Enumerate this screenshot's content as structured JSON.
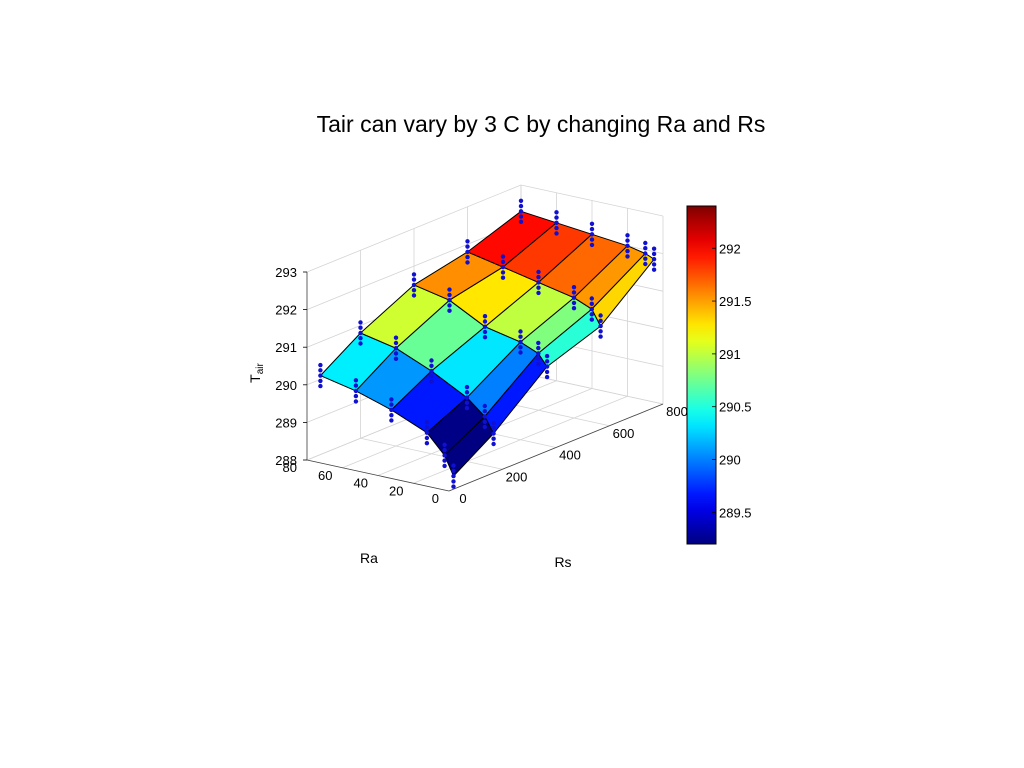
{
  "chart_data": {
    "type": "surface",
    "title": "Tair can vary by 3 C by changing Ra and Rs",
    "xlabel": "Rs",
    "ylabel": "Ra",
    "zlabel_main": "T",
    "zlabel_sub": "air",
    "xlim": [
      0,
      800
    ],
    "ylim": [
      0,
      80
    ],
    "zlim": [
      288,
      293
    ],
    "x_ticks": [
      "0",
      "200",
      "400",
      "600",
      "800"
    ],
    "y_ticks": [
      "0",
      "20",
      "40",
      "60",
      "80"
    ],
    "z_ticks": [
      "288",
      "289",
      "290",
      "291",
      "292",
      "293"
    ],
    "rs_grid": [
      50,
      200,
      400,
      600,
      800
    ],
    "ra_grid": [
      5,
      10,
      20,
      40,
      60,
      80
    ],
    "tair": [
      [
        288.2,
        288.9,
        290.1,
        290.6,
        291.8
      ],
      [
        288.7,
        289.3,
        290.4,
        291.0,
        291.9
      ],
      [
        289.2,
        289.7,
        290.6,
        291.2,
        292.0
      ],
      [
        289.6,
        290.2,
        290.8,
        291.4,
        292.1
      ],
      [
        289.9,
        290.6,
        291.3,
        291.6,
        292.2
      ],
      [
        290.1,
        290.8,
        291.5,
        291.8,
        292.3
      ]
    ],
    "colorbar": {
      "colormap": "jet",
      "range": [
        289.2,
        292.4
      ],
      "ticks": [
        "289.5",
        "290",
        "290.5",
        "291",
        "291.5",
        "292"
      ]
    },
    "marker_color": "#1010d0",
    "edge_color": "#000000"
  }
}
